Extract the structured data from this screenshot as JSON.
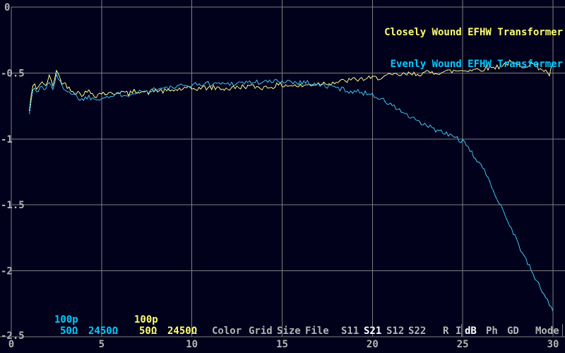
{
  "colors": {
    "background": "#01011c",
    "grid": "#7f7f7f",
    "text_gray": "#b5b5b5",
    "text_selected": "#ffffff",
    "text_yellow": "#ffff70",
    "text_cyan": "#00ccff",
    "trace_yellow": "#f8f890",
    "trace_cyan": "#38c2ee"
  },
  "legend": {
    "items": [
      {
        "label": "Closely Wound EFHW Transformer",
        "color": "#ffff70"
      },
      {
        "label": "Evenly Wound EFHW Transformer",
        "color": "#00ccff"
      }
    ]
  },
  "marker_settings": {
    "cyan": {
      "capacitance": "100p",
      "source_impedance": "50Ω",
      "load_impedance": "2450Ω"
    },
    "yellow": {
      "capacitance": "100p",
      "source_impedance": "50Ω",
      "load_impedance": "2450Ω"
    }
  },
  "menu": {
    "file_items": [
      "Color",
      "Grid",
      "Size",
      "File"
    ],
    "s_params": [
      {
        "label": "S11",
        "selected": false
      },
      {
        "label": "S21",
        "selected": true
      },
      {
        "label": "S12",
        "selected": false
      },
      {
        "label": "S22",
        "selected": false
      }
    ],
    "ri_items": [
      "R",
      "I"
    ],
    "format_items": [
      {
        "label": "dB",
        "selected": true
      },
      {
        "label": "Ph",
        "selected": false
      },
      {
        "label": "GD",
        "selected": false
      }
    ],
    "mode_label": "Mode"
  },
  "chart_data": {
    "type": "line",
    "title": "",
    "xlabel": "",
    "ylabel": "dB",
    "x_range": [
      0,
      30
    ],
    "ylim": [
      -2.5,
      0
    ],
    "x_ticks": [
      0,
      5,
      10,
      15,
      20,
      25,
      30
    ],
    "x_tick_labels": [
      "0",
      "5",
      "10",
      "15",
      "20",
      "25",
      "30"
    ],
    "y_ticks": [
      0,
      -0.5,
      -1,
      -1.5,
      -2,
      -2.5
    ],
    "y_tick_labels": [
      "0",
      "-0.5",
      "-1",
      "-1.5",
      "-2",
      "-2.5"
    ],
    "grid": true,
    "legend_position": "top-right",
    "noise_db": 0.02,
    "series": [
      {
        "name": "Closely Wound EFHW Transformer",
        "color": "#f8f890",
        "points": [
          [
            1.0,
            -0.79
          ],
          [
            1.1,
            -0.67
          ],
          [
            1.25,
            -0.58
          ],
          [
            1.45,
            -0.62
          ],
          [
            1.65,
            -0.56
          ],
          [
            1.85,
            -0.61
          ],
          [
            2.1,
            -0.53
          ],
          [
            2.3,
            -0.59
          ],
          [
            2.5,
            -0.48
          ],
          [
            2.75,
            -0.56
          ],
          [
            3.1,
            -0.6
          ],
          [
            3.5,
            -0.64
          ],
          [
            3.9,
            -0.66
          ],
          [
            4.3,
            -0.64
          ],
          [
            4.7,
            -0.67
          ],
          [
            5.0,
            -0.65
          ],
          [
            5.5,
            -0.66
          ],
          [
            6.0,
            -0.64
          ],
          [
            6.5,
            -0.66
          ],
          [
            7.0,
            -0.63
          ],
          [
            7.5,
            -0.65
          ],
          [
            8.0,
            -0.63
          ],
          [
            8.5,
            -0.64
          ],
          [
            9.0,
            -0.63
          ],
          [
            9.5,
            -0.62
          ],
          [
            10.0,
            -0.62
          ],
          [
            11.0,
            -0.61
          ],
          [
            12.0,
            -0.62
          ],
          [
            13.0,
            -0.6
          ],
          [
            14.0,
            -0.61
          ],
          [
            15.0,
            -0.59
          ],
          [
            16.0,
            -0.6
          ],
          [
            17.0,
            -0.58
          ],
          [
            18.0,
            -0.57
          ],
          [
            19.0,
            -0.55
          ],
          [
            20.0,
            -0.54
          ],
          [
            21.0,
            -0.52
          ],
          [
            22.0,
            -0.51
          ],
          [
            23.0,
            -0.5
          ],
          [
            24.0,
            -0.49
          ],
          [
            25.0,
            -0.48
          ],
          [
            26.0,
            -0.47
          ],
          [
            27.0,
            -0.45
          ],
          [
            27.6,
            -0.42
          ],
          [
            28.2,
            -0.45
          ],
          [
            28.8,
            -0.43
          ],
          [
            29.4,
            -0.47
          ],
          [
            29.8,
            -0.51
          ],
          [
            30.0,
            -0.44
          ]
        ]
      },
      {
        "name": "Evenly Wound EFHW Transformer",
        "color": "#38c2ee",
        "points": [
          [
            1.0,
            -0.8
          ],
          [
            1.1,
            -0.7
          ],
          [
            1.25,
            -0.61
          ],
          [
            1.45,
            -0.65
          ],
          [
            1.65,
            -0.59
          ],
          [
            1.85,
            -0.64
          ],
          [
            2.1,
            -0.56
          ],
          [
            2.3,
            -0.62
          ],
          [
            2.5,
            -0.52
          ],
          [
            2.75,
            -0.59
          ],
          [
            3.1,
            -0.63
          ],
          [
            3.5,
            -0.67
          ],
          [
            3.9,
            -0.7
          ],
          [
            4.3,
            -0.68
          ],
          [
            4.7,
            -0.7
          ],
          [
            5.0,
            -0.68
          ],
          [
            5.5,
            -0.68
          ],
          [
            6.0,
            -0.66
          ],
          [
            6.5,
            -0.66
          ],
          [
            7.0,
            -0.64
          ],
          [
            7.5,
            -0.64
          ],
          [
            8.0,
            -0.62
          ],
          [
            8.5,
            -0.62
          ],
          [
            9.0,
            -0.61
          ],
          [
            9.5,
            -0.6
          ],
          [
            10.0,
            -0.59
          ],
          [
            11.0,
            -0.58
          ],
          [
            12.0,
            -0.58
          ],
          [
            13.0,
            -0.57
          ],
          [
            14.0,
            -0.57
          ],
          [
            15.0,
            -0.56
          ],
          [
            16.0,
            -0.57
          ],
          [
            16.5,
            -0.57
          ],
          [
            17.0,
            -0.59
          ],
          [
            17.5,
            -0.6
          ],
          [
            18.0,
            -0.61
          ],
          [
            18.5,
            -0.63
          ],
          [
            19.0,
            -0.64
          ],
          [
            19.5,
            -0.65
          ],
          [
            20.0,
            -0.66
          ],
          [
            20.5,
            -0.7
          ],
          [
            21.0,
            -0.74
          ],
          [
            21.5,
            -0.78
          ],
          [
            22.0,
            -0.83
          ],
          [
            22.5,
            -0.87
          ],
          [
            23.0,
            -0.9
          ],
          [
            23.5,
            -0.93
          ],
          [
            24.0,
            -0.96
          ],
          [
            24.5,
            -0.98
          ],
          [
            25.0,
            -1.02
          ],
          [
            25.5,
            -1.11
          ],
          [
            26.0,
            -1.19
          ],
          [
            26.5,
            -1.33
          ],
          [
            27.0,
            -1.47
          ],
          [
            27.5,
            -1.62
          ],
          [
            28.0,
            -1.77
          ],
          [
            28.5,
            -1.92
          ],
          [
            29.0,
            -2.05
          ],
          [
            29.5,
            -2.18
          ],
          [
            30.0,
            -2.3
          ]
        ]
      }
    ]
  }
}
